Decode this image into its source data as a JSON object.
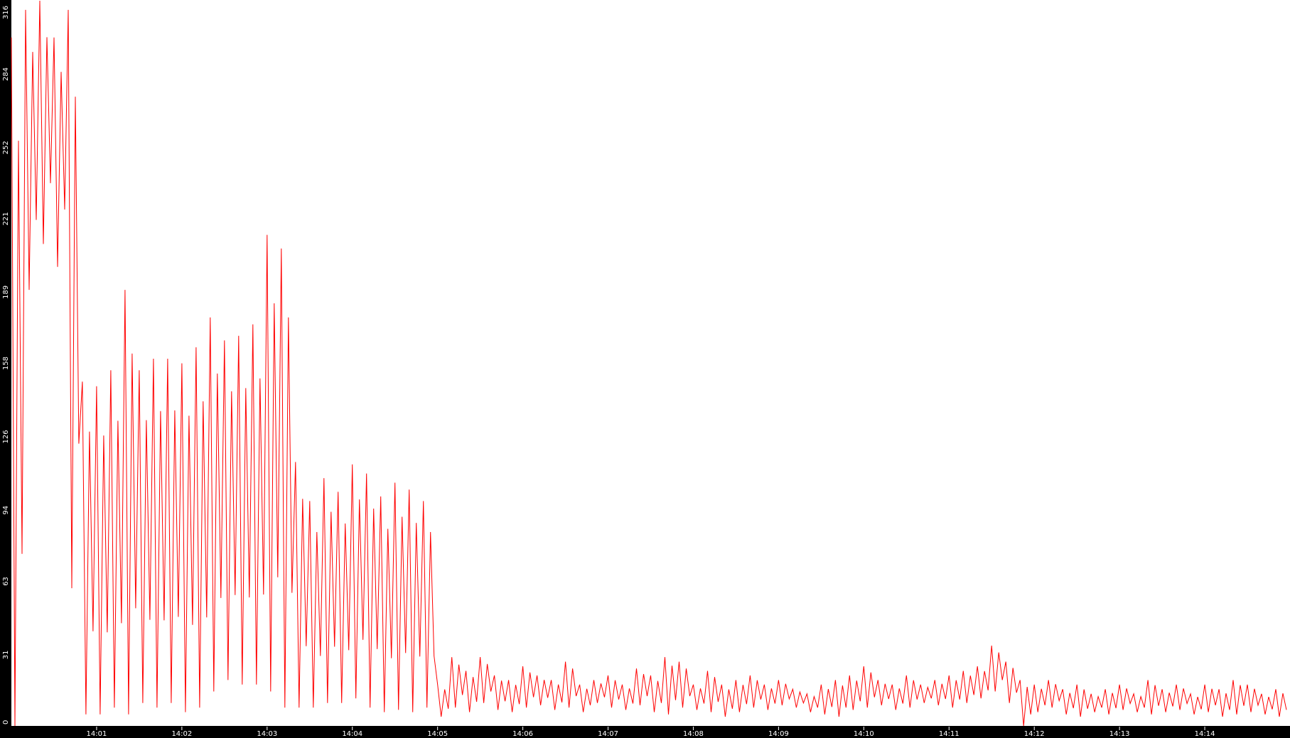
{
  "chart_data": {
    "type": "line",
    "title": "",
    "xlabel": "",
    "ylabel": "",
    "ylim": [
      0,
      316
    ],
    "xlim": [
      "14:00:00",
      "14:15:00"
    ],
    "grid": false,
    "series_color": "#ff0000",
    "y_ticks": [
      "0",
      "31",
      "63",
      "94",
      "126",
      "158",
      "189",
      "221",
      "252",
      "284",
      "316"
    ],
    "x_ticks": [
      "14:01",
      "14:02",
      "14:03",
      "14:04",
      "14:05",
      "14:06",
      "14:07",
      "14:08",
      "14:09",
      "14:10",
      "14:11",
      "14:12",
      "14:13",
      "14:14"
    ],
    "bucket_seconds": 10,
    "series": [
      {
        "low": [
          0,
          190,
          210,
          200,
          60,
          5,
          5,
          8,
          5,
          10,
          8,
          10,
          6,
          8,
          15,
          20,
          18,
          18,
          15,
          8,
          8,
          8,
          10,
          10,
          12,
          8,
          6,
          7,
          6,
          8,
          4,
          8,
          6,
          10,
          7,
          6,
          8,
          9,
          7,
          8,
          6,
          10,
          8,
          7,
          9,
          6,
          5,
          8,
          7,
          6,
          4,
          6,
          8,
          7,
          9,
          8,
          6,
          5,
          4,
          7,
          8,
          9,
          7,
          8,
          10,
          9,
          8,
          10,
          12,
          15,
          10,
          0,
          6,
          8,
          5,
          4,
          6,
          5,
          7,
          6,
          5,
          6,
          7,
          5,
          6,
          4,
          5,
          6,
          5,
          4
        ],
        "high": [
          300,
          312,
          316,
          300,
          312,
          150,
          148,
          155,
          190,
          155,
          160,
          160,
          158,
          165,
          178,
          168,
          170,
          175,
          214,
          208,
          115,
          98,
          108,
          102,
          114,
          110,
          100,
          106,
          103,
          98,
          18,
          30,
          24,
          30,
          22,
          20,
          26,
          22,
          20,
          28,
          18,
          20,
          22,
          18,
          25,
          22,
          30,
          28,
          18,
          24,
          18,
          20,
          22,
          18,
          20,
          16,
          14,
          18,
          20,
          22,
          26,
          20,
          18,
          22,
          18,
          20,
          22,
          24,
          26,
          35,
          28,
          20,
          18,
          20,
          16,
          18,
          14,
          16,
          18,
          14,
          20,
          16,
          18,
          14,
          18,
          16,
          20,
          18,
          14,
          16
        ]
      }
    ]
  }
}
